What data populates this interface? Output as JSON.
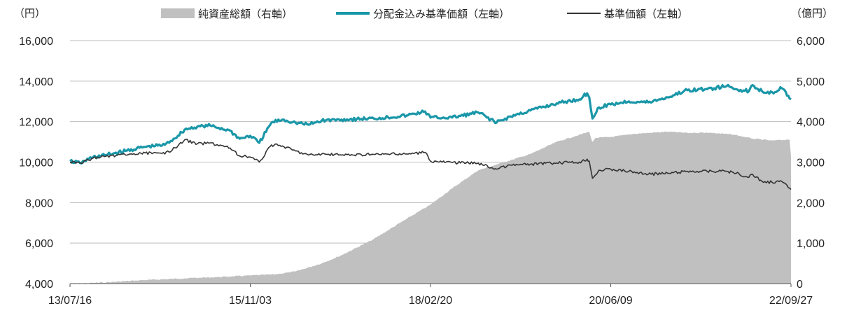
{
  "chart_data": {
    "type": "line",
    "title": "",
    "xlabel": "",
    "left_unit": "（円）",
    "right_unit": "（億円）",
    "x_tick_labels": [
      "13/07/16",
      "15/11/03",
      "18/02/20",
      "20/06/09",
      "22/09/27"
    ],
    "x_range": [
      "2013-07-16",
      "2022-09-27"
    ],
    "left_ylim": [
      4000,
      16000
    ],
    "right_ylim": [
      0,
      6000
    ],
    "left_ticks": [
      "4,000",
      "6,000",
      "8,000",
      "10,000",
      "12,000",
      "14,000",
      "16,000"
    ],
    "right_ticks": [
      "0",
      "1,000",
      "2,000",
      "3,000",
      "4,000",
      "5,000",
      "6,000"
    ],
    "grid": true,
    "legend_position": "top",
    "legend": [
      {
        "label": "純資産総額（右軸）",
        "color": "#c0c0c0",
        "kind": "area"
      },
      {
        "label": "分配金込み基準価額（左軸）",
        "color": "#1a97a8",
        "kind": "line"
      },
      {
        "label": "基準価額（左軸）",
        "color": "#333333",
        "kind": "line"
      }
    ],
    "series": [
      {
        "name": "純資産総額（右軸）",
        "axis": "right",
        "kind": "area",
        "color": "#c0c0c0",
        "points": [
          [
            "2013-07-16",
            0
          ],
          [
            "2013-10-01",
            10
          ],
          [
            "2014-01-01",
            30
          ],
          [
            "2014-06-01",
            80
          ],
          [
            "2015-01-01",
            130
          ],
          [
            "2015-06-01",
            160
          ],
          [
            "2015-11-03",
            200
          ],
          [
            "2016-03-01",
            230
          ],
          [
            "2016-06-01",
            300
          ],
          [
            "2016-10-01",
            500
          ],
          [
            "2017-01-01",
            700
          ],
          [
            "2017-06-01",
            1100
          ],
          [
            "2017-10-01",
            1500
          ],
          [
            "2018-02-20",
            1950
          ],
          [
            "2018-06-01",
            2350
          ],
          [
            "2018-10-01",
            2800
          ],
          [
            "2019-01-01",
            2950
          ],
          [
            "2019-06-01",
            3200
          ],
          [
            "2019-10-01",
            3500
          ],
          [
            "2020-01-01",
            3650
          ],
          [
            "2020-03-01",
            3750
          ],
          [
            "2020-03-15",
            3500
          ],
          [
            "2020-04-01",
            3600
          ],
          [
            "2020-06-09",
            3620
          ],
          [
            "2020-10-01",
            3700
          ],
          [
            "2021-03-01",
            3750
          ],
          [
            "2021-06-01",
            3720
          ],
          [
            "2021-09-01",
            3730
          ],
          [
            "2022-01-01",
            3680
          ],
          [
            "2022-04-01",
            3580
          ],
          [
            "2022-07-01",
            3530
          ],
          [
            "2022-09-20",
            3560
          ],
          [
            "2022-09-27",
            3150
          ]
        ]
      },
      {
        "name": "分配金込み基準価額（左軸）",
        "axis": "left",
        "kind": "line",
        "color": "#1a97a8",
        "points": [
          [
            "2013-07-16",
            10050
          ],
          [
            "2013-09-01",
            9950
          ],
          [
            "2013-11-01",
            10250
          ],
          [
            "2014-01-01",
            10350
          ],
          [
            "2014-04-01",
            10550
          ],
          [
            "2014-07-01",
            10750
          ],
          [
            "2014-10-01",
            10850
          ],
          [
            "2014-12-01",
            11300
          ],
          [
            "2015-01-01",
            11600
          ],
          [
            "2015-03-01",
            11750
          ],
          [
            "2015-05-01",
            11800
          ],
          [
            "2015-08-01",
            11550
          ],
          [
            "2015-09-15",
            11150
          ],
          [
            "2015-11-03",
            11300
          ],
          [
            "2015-12-15",
            10950
          ],
          [
            "2016-02-10",
            11950
          ],
          [
            "2016-04-01",
            12100
          ],
          [
            "2016-06-01",
            11950
          ],
          [
            "2016-08-01",
            11850
          ],
          [
            "2016-10-01",
            12050
          ],
          [
            "2017-01-01",
            12100
          ],
          [
            "2017-06-01",
            12150
          ],
          [
            "2017-11-01",
            12300
          ],
          [
            "2018-01-26",
            12500
          ],
          [
            "2018-02-20",
            12200
          ],
          [
            "2018-06-01",
            12200
          ],
          [
            "2018-10-01",
            12450
          ],
          [
            "2018-12-25",
            11950
          ],
          [
            "2019-03-01",
            12250
          ],
          [
            "2019-06-01",
            12550
          ],
          [
            "2019-10-01",
            12900
          ],
          [
            "2020-01-15",
            13100
          ],
          [
            "2020-02-20",
            13400
          ],
          [
            "2020-03-01",
            13200
          ],
          [
            "2020-03-16",
            12150
          ],
          [
            "2020-04-15",
            12700
          ],
          [
            "2020-06-09",
            12850
          ],
          [
            "2020-09-01",
            13000
          ],
          [
            "2020-12-01",
            12950
          ],
          [
            "2021-03-01",
            13200
          ],
          [
            "2021-06-01",
            13550
          ],
          [
            "2021-09-01",
            13600
          ],
          [
            "2021-12-01",
            13750
          ],
          [
            "2022-01-15",
            13600
          ],
          [
            "2022-03-15",
            13500
          ],
          [
            "2022-04-01",
            13800
          ],
          [
            "2022-05-15",
            13500
          ],
          [
            "2022-07-01",
            13450
          ],
          [
            "2022-08-15",
            13650
          ],
          [
            "2022-09-27",
            13100
          ]
        ]
      },
      {
        "name": "基準価額（左軸）",
        "axis": "left",
        "kind": "line",
        "color": "#333333",
        "points": [
          [
            "2013-07-16",
            10000
          ],
          [
            "2013-09-01",
            9950
          ],
          [
            "2013-11-01",
            10200
          ],
          [
            "2014-01-01",
            10300
          ],
          [
            "2014-04-01",
            10350
          ],
          [
            "2014-07-01",
            10450
          ],
          [
            "2014-10-01",
            10400
          ],
          [
            "2014-12-01",
            10800
          ],
          [
            "2015-01-01",
            11100
          ],
          [
            "2015-03-01",
            10900
          ],
          [
            "2015-05-01",
            10950
          ],
          [
            "2015-08-01",
            10700
          ],
          [
            "2015-09-15",
            10300
          ],
          [
            "2015-11-03",
            10250
          ],
          [
            "2015-12-15",
            10000
          ],
          [
            "2016-02-10",
            10850
          ],
          [
            "2016-04-01",
            10800
          ],
          [
            "2016-06-01",
            10550
          ],
          [
            "2016-08-01",
            10350
          ],
          [
            "2016-10-01",
            10400
          ],
          [
            "2017-01-01",
            10350
          ],
          [
            "2017-06-01",
            10380
          ],
          [
            "2017-11-01",
            10400
          ],
          [
            "2018-01-26",
            10480
          ],
          [
            "2018-02-20",
            10050
          ],
          [
            "2018-06-01",
            9980
          ],
          [
            "2018-10-01",
            9950
          ],
          [
            "2018-12-25",
            9650
          ],
          [
            "2019-03-01",
            9850
          ],
          [
            "2019-06-01",
            9900
          ],
          [
            "2019-10-01",
            9950
          ],
          [
            "2020-01-15",
            10000
          ],
          [
            "2020-02-20",
            10150
          ],
          [
            "2020-03-01",
            10050
          ],
          [
            "2020-03-16",
            9200
          ],
          [
            "2020-04-15",
            9600
          ],
          [
            "2020-06-09",
            9650
          ],
          [
            "2020-09-01",
            9550
          ],
          [
            "2020-12-01",
            9400
          ],
          [
            "2021-03-01",
            9450
          ],
          [
            "2021-06-01",
            9550
          ],
          [
            "2021-09-01",
            9550
          ],
          [
            "2021-12-01",
            9550
          ],
          [
            "2022-01-15",
            9450
          ],
          [
            "2022-03-15",
            9250
          ],
          [
            "2022-04-01",
            9400
          ],
          [
            "2022-05-15",
            9050
          ],
          [
            "2022-07-01",
            9000
          ],
          [
            "2022-08-15",
            9050
          ],
          [
            "2022-09-27",
            8650
          ]
        ]
      }
    ]
  }
}
